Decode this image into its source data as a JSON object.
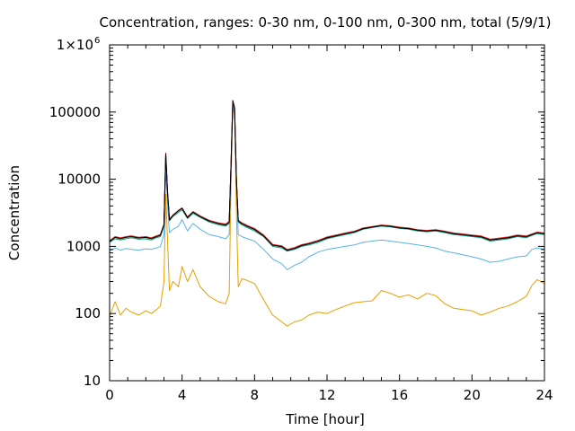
{
  "chart_data": {
    "type": "line",
    "title": "Concentration, ranges: 0-30 nm, 0-100 nm, 0-300 nm, total (5/9/1)",
    "xlabel": "Time [hour]",
    "ylabel": "Concentration",
    "xlim": [
      0,
      24
    ],
    "ylim": [
      10,
      1000000
    ],
    "yscale": "log",
    "grid": false,
    "legend": "none",
    "x_ticks": [
      0,
      4,
      8,
      12,
      16,
      20,
      24
    ],
    "x_tick_labels": [
      "0",
      "4",
      "8",
      "12",
      "16",
      "20",
      "24"
    ],
    "y_ticks": [
      10,
      100,
      1000,
      10000,
      100000,
      1000000
    ],
    "y_tick_labels": [
      "10",
      "100",
      "1000",
      "10000",
      "100000",
      "1×10"
    ],
    "y_top_label_exponent": "6",
    "series": [
      {
        "color": "#e69f00",
        "x": [
          0.0,
          0.3,
          0.6,
          0.9,
          1.2,
          1.6,
          2.0,
          2.3,
          2.6,
          2.8,
          3.0,
          3.1,
          3.2,
          3.3,
          3.5,
          3.8,
          4.0,
          4.3,
          4.6,
          5.0,
          5.5,
          6.0,
          6.4,
          6.6,
          6.7,
          6.8,
          6.9,
          7.0,
          7.1,
          7.3,
          7.6,
          8.0,
          8.5,
          9.0,
          9.5,
          9.8,
          10.2,
          10.6,
          11.0,
          11.5,
          12.0,
          12.5,
          13.0,
          13.5,
          14.0,
          14.5,
          15.0,
          15.5,
          16.0,
          16.5,
          17.0,
          17.5,
          18.0,
          18.5,
          19.0,
          19.5,
          20.0,
          20.5,
          21.0,
          21.5,
          22.0,
          22.5,
          23.0,
          23.3,
          23.6,
          24.0
        ],
        "y": [
          90,
          150,
          95,
          120,
          105,
          95,
          110,
          100,
          115,
          130,
          300,
          6000,
          1200,
          220,
          300,
          250,
          500,
          300,
          450,
          250,
          180,
          150,
          140,
          200,
          8000,
          120000,
          90000,
          3000,
          250,
          330,
          310,
          280,
          160,
          95,
          75,
          65,
          75,
          80,
          95,
          105,
          100,
          115,
          130,
          145,
          150,
          155,
          220,
          200,
          175,
          190,
          165,
          200,
          185,
          140,
          120,
          115,
          110,
          95,
          105,
          120,
          130,
          150,
          180,
          260,
          320,
          280
        ]
      },
      {
        "color": "#56b4e9",
        "x": [
          0.0,
          0.3,
          0.6,
          0.9,
          1.2,
          1.6,
          2.0,
          2.3,
          2.6,
          2.8,
          3.0,
          3.1,
          3.2,
          3.3,
          3.5,
          3.8,
          4.0,
          4.3,
          4.6,
          5.0,
          5.5,
          6.0,
          6.4,
          6.6,
          6.7,
          6.8,
          6.9,
          7.0,
          7.1,
          7.3,
          7.6,
          8.0,
          8.5,
          9.0,
          9.5,
          9.8,
          10.2,
          10.6,
          11.0,
          11.5,
          12.0,
          12.5,
          13.0,
          13.5,
          14.0,
          14.5,
          15.0,
          15.5,
          16.0,
          16.5,
          17.0,
          17.5,
          18.0,
          18.5,
          19.0,
          19.5,
          20.0,
          20.5,
          21.0,
          21.5,
          22.0,
          22.5,
          23.0,
          23.3,
          23.6,
          24.0
        ],
        "y": [
          850,
          950,
          880,
          930,
          900,
          880,
          920,
          900,
          950,
          1000,
          1500,
          15000,
          4000,
          1600,
          1800,
          2000,
          2500,
          1700,
          2200,
          1800,
          1500,
          1400,
          1300,
          1500,
          12000,
          130000,
          100000,
          8000,
          1500,
          1400,
          1300,
          1200,
          900,
          650,
          550,
          450,
          520,
          580,
          700,
          820,
          900,
          950,
          1000,
          1050,
          1150,
          1200,
          1250,
          1200,
          1150,
          1100,
          1050,
          1000,
          950,
          850,
          800,
          750,
          700,
          650,
          580,
          600,
          650,
          700,
          720,
          900,
          950,
          900
        ]
      },
      {
        "color": "#009e73",
        "x": [
          0.0,
          0.3,
          0.6,
          0.9,
          1.2,
          1.6,
          2.0,
          2.3,
          2.6,
          2.8,
          3.0,
          3.1,
          3.2,
          3.3,
          3.5,
          3.8,
          4.0,
          4.3,
          4.6,
          5.0,
          5.5,
          6.0,
          6.4,
          6.6,
          6.7,
          6.8,
          6.9,
          7.0,
          7.1,
          7.3,
          7.6,
          8.0,
          8.5,
          9.0,
          9.5,
          9.8,
          10.2,
          10.6,
          11.0,
          11.5,
          12.0,
          12.5,
          13.0,
          13.5,
          14.0,
          14.5,
          15.0,
          15.5,
          16.0,
          16.5,
          17.0,
          17.5,
          18.0,
          18.5,
          19.0,
          19.5,
          20.0,
          20.5,
          21.0,
          21.5,
          22.0,
          22.5,
          23.0,
          23.3,
          23.6,
          24.0
        ],
        "y": [
          1150,
          1300,
          1250,
          1300,
          1350,
          1280,
          1300,
          1250,
          1350,
          1400,
          2000,
          22000,
          6000,
          2400,
          2800,
          3200,
          3500,
          2600,
          3100,
          2700,
          2300,
          2100,
          2000,
          2200,
          15000,
          140000,
          110000,
          9000,
          2300,
          2100,
          1900,
          1700,
          1400,
          1000,
          950,
          850,
          900,
          1000,
          1050,
          1150,
          1300,
          1400,
          1500,
          1600,
          1800,
          1900,
          2000,
          1950,
          1850,
          1800,
          1700,
          1650,
          1700,
          1600,
          1500,
          1450,
          1400,
          1350,
          1200,
          1250,
          1300,
          1400,
          1350,
          1450,
          1550,
          1500
        ]
      },
      {
        "color": "#0000ff",
        "x": [
          0.0,
          0.3,
          0.6,
          0.9,
          1.2,
          1.6,
          2.0,
          2.3,
          2.6,
          2.8,
          3.0,
          3.1,
          3.2,
          3.3,
          3.5,
          3.8,
          4.0,
          4.3,
          4.6,
          5.0,
          5.5,
          6.0,
          6.4,
          6.6,
          6.7,
          6.8,
          6.9,
          7.0,
          7.1,
          7.3,
          7.6,
          8.0,
          8.5,
          9.0,
          9.5,
          9.8,
          10.2,
          10.6,
          11.0,
          11.5,
          12.0,
          12.5,
          13.0,
          13.5,
          14.0,
          14.5,
          15.0,
          15.5,
          16.0,
          16.5,
          17.0,
          17.5,
          18.0,
          18.5,
          19.0,
          19.5,
          20.0,
          20.5,
          21.0,
          21.5,
          22.0,
          22.5,
          23.0,
          23.3,
          23.6,
          24.0
        ],
        "y": [
          1200,
          1380,
          1320,
          1380,
          1420,
          1350,
          1380,
          1320,
          1420,
          1480,
          2100,
          24000,
          6500,
          2500,
          2900,
          3400,
          3700,
          2700,
          3250,
          2800,
          2400,
          2200,
          2100,
          2300,
          16000,
          148000,
          115000,
          9500,
          2400,
          2200,
          2000,
          1800,
          1450,
          1050,
          1000,
          880,
          940,
          1040,
          1100,
          1200,
          1350,
          1450,
          1550,
          1650,
          1850,
          1950,
          2050,
          2000,
          1900,
          1850,
          1750,
          1700,
          1750,
          1650,
          1550,
          1500,
          1450,
          1400,
          1250,
          1300,
          1350,
          1450,
          1400,
          1500,
          1600,
          1550
        ]
      },
      {
        "color": "#e51e10",
        "x": [
          0.0,
          0.3,
          0.6,
          0.9,
          1.2,
          1.6,
          2.0,
          2.3,
          2.6,
          2.8,
          3.0,
          3.1,
          3.2,
          3.3,
          3.5,
          3.8,
          4.0,
          4.3,
          4.6,
          5.0,
          5.5,
          6.0,
          6.4,
          6.6,
          6.7,
          6.8,
          6.9,
          7.0,
          7.1,
          7.3,
          7.6,
          8.0,
          8.5,
          9.0,
          9.5,
          9.8,
          10.2,
          10.6,
          11.0,
          11.5,
          12.0,
          12.5,
          13.0,
          13.5,
          14.0,
          14.5,
          15.0,
          15.5,
          16.0,
          16.5,
          17.0,
          17.5,
          18.0,
          18.5,
          19.0,
          19.5,
          20.0,
          20.5,
          21.0,
          21.5,
          22.0,
          22.5,
          23.0,
          23.3,
          23.6,
          24.0
        ],
        "y": [
          1220,
          1400,
          1340,
          1400,
          1440,
          1370,
          1400,
          1340,
          1440,
          1500,
          2150,
          24500,
          6600,
          2550,
          2950,
          3450,
          3750,
          2750,
          3300,
          2850,
          2450,
          2250,
          2150,
          2350,
          16200,
          150000,
          116000,
          9600,
          2450,
          2250,
          2050,
          1850,
          1480,
          1070,
          1020,
          900,
          960,
          1060,
          1120,
          1220,
          1380,
          1480,
          1580,
          1680,
          1880,
          1980,
          2080,
          2030,
          1930,
          1880,
          1780,
          1730,
          1780,
          1680,
          1580,
          1530,
          1480,
          1430,
          1280,
          1330,
          1380,
          1480,
          1430,
          1530,
          1630,
          1580
        ]
      },
      {
        "color": "#000000",
        "x": [
          0.0,
          0.3,
          0.6,
          0.9,
          1.2,
          1.6,
          2.0,
          2.3,
          2.6,
          2.8,
          3.0,
          3.1,
          3.2,
          3.3,
          3.5,
          3.8,
          4.0,
          4.3,
          4.6,
          5.0,
          5.5,
          6.0,
          6.4,
          6.6,
          6.7,
          6.8,
          6.9,
          7.0,
          7.1,
          7.3,
          7.6,
          8.0,
          8.5,
          9.0,
          9.5,
          9.8,
          10.2,
          10.6,
          11.0,
          11.5,
          12.0,
          12.5,
          13.0,
          13.5,
          14.0,
          14.5,
          15.0,
          15.5,
          16.0,
          16.5,
          17.0,
          17.5,
          18.0,
          18.5,
          19.0,
          19.5,
          20.0,
          20.5,
          21.0,
          21.5,
          22.0,
          22.5,
          23.0,
          23.3,
          23.6,
          24.0
        ],
        "y": [
          1180,
          1360,
          1300,
          1360,
          1400,
          1330,
          1360,
          1300,
          1400,
          1460,
          2080,
          23500,
          6400,
          2480,
          2880,
          3380,
          3680,
          2680,
          3230,
          2780,
          2380,
          2180,
          2080,
          2280,
          15800,
          146000,
          113000,
          9400,
          2380,
          2180,
          1980,
          1780,
          1430,
          1040,
          990,
          870,
          930,
          1030,
          1090,
          1190,
          1340,
          1440,
          1540,
          1640,
          1840,
          1940,
          2040,
          1990,
          1890,
          1840,
          1740,
          1690,
          1740,
          1640,
          1540,
          1490,
          1440,
          1390,
          1240,
          1290,
          1340,
          1440,
          1390,
          1490,
          1590,
          1540
        ]
      }
    ]
  }
}
